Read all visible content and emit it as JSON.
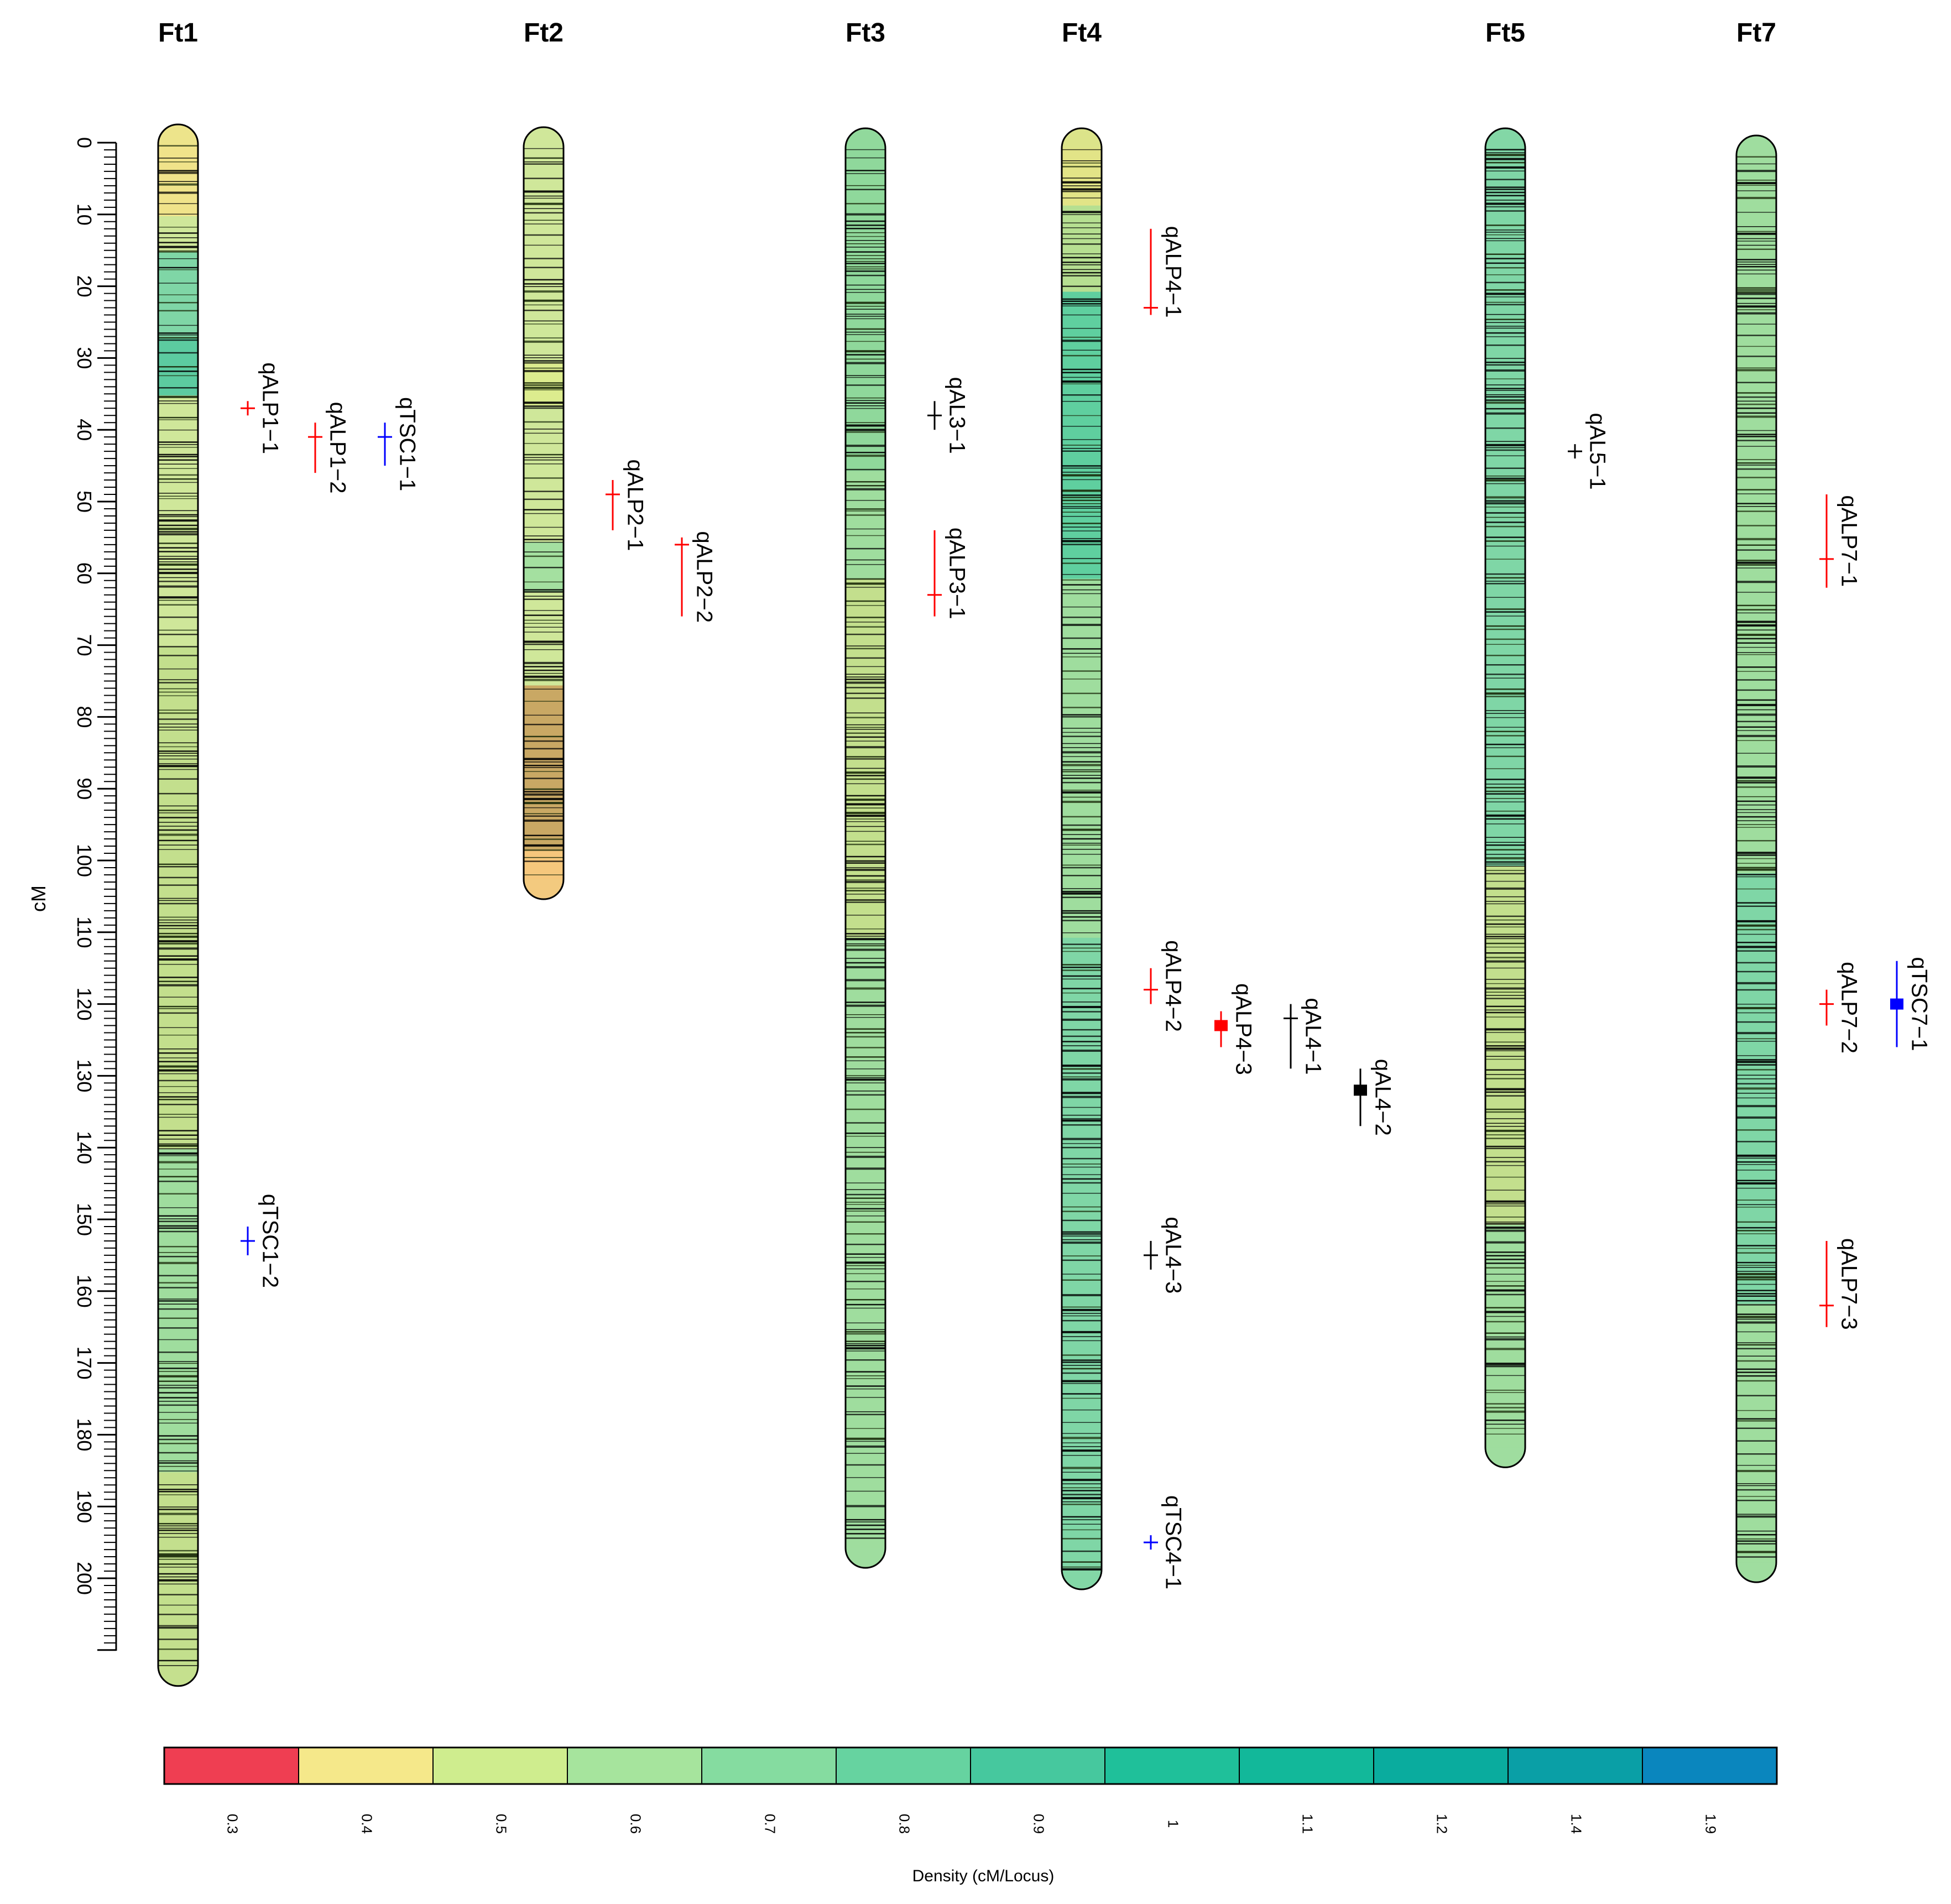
{
  "figure": {
    "axis_label": "cM",
    "axis_max": 210,
    "axis_ticks": [
      "0",
      "10",
      "20",
      "30",
      "40",
      "50",
      "60",
      "70",
      "80",
      "90",
      "100",
      "110",
      "120",
      "130",
      "140",
      "150",
      "160",
      "170",
      "180",
      "190",
      "200"
    ]
  },
  "chromosomes": [
    {
      "name": "Ft1",
      "length": 212,
      "base_color": "#cfe79a",
      "seed": 11,
      "zones": [
        [
          0,
          10,
          "#f0e38a"
        ],
        [
          15,
          27,
          "#7fd6a6"
        ],
        [
          27,
          35,
          "#5ccba0"
        ],
        [
          35,
          70,
          "#cfe79a"
        ],
        [
          70,
          140,
          "#c3df8d"
        ],
        [
          140,
          185,
          "#9fdd9e"
        ],
        [
          185,
          212,
          "#c3df8d"
        ]
      ]
    },
    {
      "name": "Ft2",
      "length": 102,
      "base_color": "#cfe79a",
      "seed": 23,
      "zones": [
        [
          0,
          30,
          "#cfe79a"
        ],
        [
          30,
          36,
          "#dcec8e"
        ],
        [
          55,
          62,
          "#a4e0a0"
        ],
        [
          75,
          98,
          "#c9a864"
        ],
        [
          98,
          102,
          "#f6c77c"
        ]
      ]
    },
    {
      "name": "Ft3",
      "length": 195,
      "base_color": "#9fdd9e",
      "seed": 37,
      "zones": [
        [
          0,
          45,
          "#8fd89b"
        ],
        [
          45,
          60,
          "#9fdd9e"
        ],
        [
          60,
          110,
          "#c3df8d"
        ],
        [
          110,
          195,
          "#9fdd9e"
        ]
      ]
    },
    {
      "name": "Ft4",
      "length": 198,
      "base_color": "#9fdd9e",
      "seed": 41,
      "zones": [
        [
          0,
          8,
          "#e2e487"
        ],
        [
          8,
          20,
          "#b6df91"
        ],
        [
          20,
          60,
          "#5fcf9f"
        ],
        [
          60,
          110,
          "#9fdd9e"
        ],
        [
          110,
          198,
          "#7fd6a6"
        ]
      ]
    },
    {
      "name": "Ft5",
      "length": 181,
      "base_color": "#9fdd9e",
      "seed": 53,
      "zones": [
        [
          0,
          100,
          "#7fd6a6"
        ],
        [
          100,
          150,
          "#c3df8d"
        ],
        [
          150,
          181,
          "#9fdd9e"
        ]
      ]
    },
    {
      "name": "Ft7",
      "length": 196,
      "base_color": "#9fdd9e",
      "seed": 67,
      "zones": [
        [
          0,
          100,
          "#9fdd9e"
        ],
        [
          100,
          160,
          "#7fd6a6"
        ],
        [
          160,
          196,
          "#9fdd9e"
        ]
      ]
    }
  ],
  "qtls": [
    {
      "name": "qALP1−1",
      "chrom": "Ft1",
      "col": 1,
      "start": 36,
      "end": 38,
      "peak": 37,
      "color": "#ff0000",
      "thick": false
    },
    {
      "name": "qALP1−2",
      "chrom": "Ft1",
      "col": 2,
      "start": 39,
      "end": 46,
      "peak": 41,
      "color": "#ff0000",
      "thick": false
    },
    {
      "name": "qTSC1−1",
      "chrom": "Ft1",
      "col": 3,
      "start": 39,
      "end": 45,
      "peak": 41,
      "color": "#0000ff",
      "thick": false
    },
    {
      "name": "qTSC1−2",
      "chrom": "Ft1",
      "col": 1,
      "start": 151,
      "end": 155,
      "peak": 153,
      "color": "#0000ff",
      "thick": false
    },
    {
      "name": "qALP2−1",
      "chrom": "Ft2",
      "col": 1,
      "start": 47,
      "end": 54,
      "peak": 49,
      "color": "#ff0000",
      "thick": false
    },
    {
      "name": "qALP2−2",
      "chrom": "Ft2",
      "col": 2,
      "start": 55,
      "end": 66,
      "peak": 56,
      "color": "#ff0000",
      "thick": false
    },
    {
      "name": "qAL3−1",
      "chrom": "Ft3",
      "col": 1,
      "start": 36,
      "end": 40,
      "peak": 38,
      "color": "#000000",
      "thick": false
    },
    {
      "name": "qALP3−1",
      "chrom": "Ft3",
      "col": 1,
      "start": 54,
      "end": 66,
      "peak": 63,
      "color": "#ff0000",
      "thick": false
    },
    {
      "name": "qALP4−1",
      "chrom": "Ft4",
      "col": 1,
      "start": 12,
      "end": 24,
      "peak": 23,
      "color": "#ff0000",
      "thick": false
    },
    {
      "name": "qALP4−2",
      "chrom": "Ft4",
      "col": 1,
      "start": 115,
      "end": 120,
      "peak": 118,
      "color": "#ff0000",
      "thick": false
    },
    {
      "name": "qALP4−3",
      "chrom": "Ft4",
      "col": 2,
      "start": 121,
      "end": 126,
      "peak": 123,
      "color": "#ff0000",
      "thick": true
    },
    {
      "name": "qAL4−1",
      "chrom": "Ft4",
      "col": 3,
      "start": 120,
      "end": 129,
      "peak": 122,
      "color": "#000000",
      "thick": false
    },
    {
      "name": "qAL4−2",
      "chrom": "Ft4",
      "col": 4,
      "start": 129,
      "end": 137,
      "peak": 132,
      "color": "#000000",
      "thick": true
    },
    {
      "name": "qAL4−3",
      "chrom": "Ft4",
      "col": 1,
      "start": 153,
      "end": 157,
      "peak": 155,
      "color": "#000000",
      "thick": false
    },
    {
      "name": "qTSC4−1",
      "chrom": "Ft4",
      "col": 1,
      "start": 194,
      "end": 196,
      "peak": 195,
      "color": "#0000ff",
      "thick": false
    },
    {
      "name": "qAL5−1",
      "chrom": "Ft5",
      "col": 1,
      "start": 42,
      "end": 44,
      "peak": 43,
      "color": "#000000",
      "thick": false
    },
    {
      "name": "qALP7−1",
      "chrom": "Ft7",
      "col": 1,
      "start": 49,
      "end": 62,
      "peak": 58,
      "color": "#ff0000",
      "thick": false
    },
    {
      "name": "qALP7−2",
      "chrom": "Ft7",
      "col": 1,
      "start": 118,
      "end": 123,
      "peak": 120,
      "color": "#ff0000",
      "thick": false
    },
    {
      "name": "qTSC7−1",
      "chrom": "Ft7",
      "col": 2,
      "start": 114,
      "end": 126,
      "peak": 120,
      "color": "#0000ff",
      "thick": true
    },
    {
      "name": "qALP7−3",
      "chrom": "Ft7",
      "col": 1,
      "start": 153,
      "end": 165,
      "peak": 162,
      "color": "#ff0000",
      "thick": false
    }
  ],
  "legend": {
    "title": "Density (cM/Locus)",
    "bins": [
      {
        "label": "0.3",
        "color": "#ef3e52"
      },
      {
        "label": "0.4",
        "color": "#f5e88a"
      },
      {
        "label": "0.5",
        "color": "#cfed8e"
      },
      {
        "label": "0.6",
        "color": "#a6e49d"
      },
      {
        "label": "0.7",
        "color": "#85dca0"
      },
      {
        "label": "0.8",
        "color": "#66d3a0"
      },
      {
        "label": "0.9",
        "color": "#46c89e"
      },
      {
        "label": "1",
        "color": "#1fc09a"
      },
      {
        "label": "1.1",
        "color": "#12b89a"
      },
      {
        "label": "1.2",
        "color": "#0aac9e"
      },
      {
        "label": "1.4",
        "color": "#0a9fa6"
      },
      {
        "label": "1.9",
        "color": "#0a86be"
      }
    ]
  }
}
